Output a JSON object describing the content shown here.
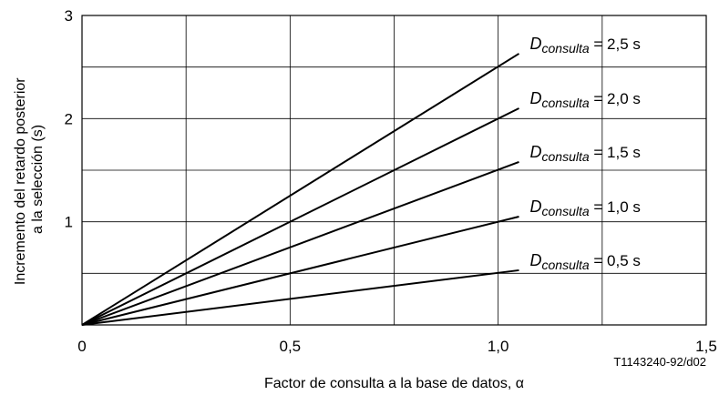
{
  "chart_data": {
    "type": "line",
    "title": "",
    "xlabel": "Factor de consulta a la base de datos, α",
    "ylabel_lines": [
      "Incremento del retardo posterior",
      "a la selección (s)"
    ],
    "xlim": [
      0,
      1.5
    ],
    "ylim": [
      0,
      3
    ],
    "x_ticks": [
      0,
      0.5,
      1.0,
      1.5
    ],
    "x_tick_labels": [
      "0",
      "0,5",
      "1,0",
      "1,5"
    ],
    "y_ticks": [
      1,
      2,
      3
    ],
    "y_tick_labels": [
      "1",
      "2",
      "3"
    ],
    "x_gridlines": [
      0.25,
      0.5,
      0.75,
      1.0,
      1.25
    ],
    "y_gridlines": [
      0.5,
      1.0,
      1.5,
      2.0,
      2.5
    ],
    "grid": true,
    "series": [
      {
        "name": "D consulta = 2,5 s",
        "label_main": "D",
        "label_sub": "consulta",
        "label_value": " = 2,5 s",
        "x": [
          0,
          1.05
        ],
        "y": [
          0,
          2.63
        ]
      },
      {
        "name": "D consulta = 2,0 s",
        "label_main": "D",
        "label_sub": "consulta",
        "label_value": " = 2,0 s",
        "x": [
          0,
          1.05
        ],
        "y": [
          0,
          2.1
        ]
      },
      {
        "name": "D consulta = 1,5 s",
        "label_main": "D",
        "label_sub": "consulta",
        "label_value": " = 1,5 s",
        "x": [
          0,
          1.05
        ],
        "y": [
          0,
          1.58
        ]
      },
      {
        "name": "D consulta = 1,0 s",
        "label_main": "D",
        "label_sub": "consulta",
        "label_value": " = 1,0 s",
        "x": [
          0,
          1.05
        ],
        "y": [
          0,
          1.05
        ]
      },
      {
        "name": "D consulta = 0,5 s",
        "label_main": "D",
        "label_sub": "consulta",
        "label_value": " = 0,5 s",
        "x": [
          0,
          1.05
        ],
        "y": [
          0,
          0.53
        ]
      }
    ],
    "figure_code": "T1143240-92/d02"
  }
}
